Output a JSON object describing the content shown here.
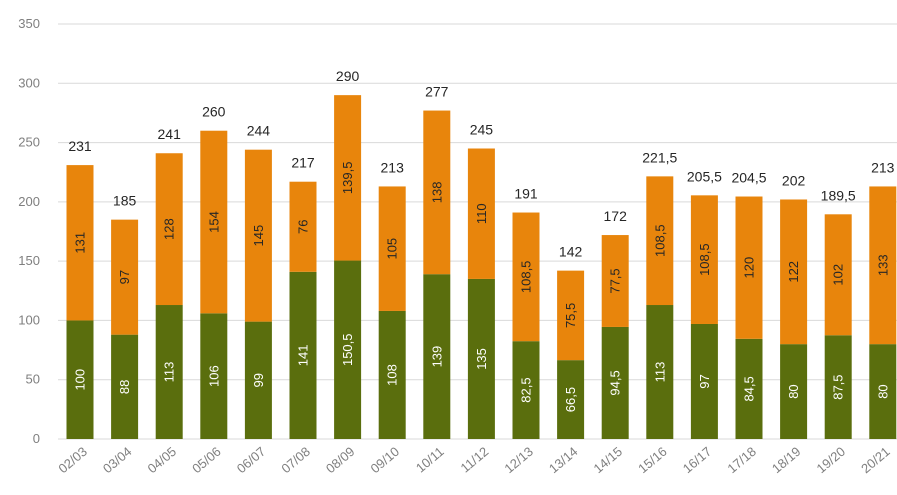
{
  "chart_data": {
    "type": "bar",
    "stacked": true,
    "categories": [
      "02/03",
      "03/04",
      "04/05",
      "05/06",
      "06/07",
      "07/08",
      "08/09",
      "09/10",
      "10/11",
      "11/12",
      "12/13",
      "13/14",
      "14/15",
      "15/16",
      "16/17",
      "17/18",
      "18/19",
      "19/20",
      "20/21"
    ],
    "series": [
      {
        "color": "#5a6e0d",
        "values": [
          100,
          88,
          113,
          106,
          99,
          141,
          150.5,
          108,
          139,
          135,
          82.5,
          66.5,
          94.5,
          113,
          97,
          84.5,
          80,
          87.5,
          80
        ],
        "labels": [
          "100",
          "88",
          "113",
          "106",
          "99",
          "141",
          "150,5",
          "108",
          "139",
          "135",
          "82,5",
          "66,5",
          "94,5",
          "113",
          "97",
          "84,5",
          "80",
          "87,5",
          "80"
        ]
      },
      {
        "color": "#e8850c",
        "values": [
          131,
          97,
          128,
          154,
          145,
          76,
          139.5,
          105,
          138,
          110,
          108.5,
          75.5,
          77.5,
          108.5,
          108.5,
          120,
          122,
          102,
          133
        ],
        "labels": [
          "131",
          "97",
          "128",
          "154",
          "145",
          "76",
          "139,5",
          "105",
          "138",
          "110",
          "108,5",
          "75,5",
          "77,5",
          "108,5",
          "108,5",
          "120",
          "122",
          "102",
          "133"
        ]
      }
    ],
    "totals": [
      231,
      185,
      241,
      260,
      244,
      217,
      290,
      213,
      277,
      245,
      191,
      142,
      172,
      221.5,
      205.5,
      204.5,
      202,
      189.5,
      213
    ],
    "total_labels": [
      "231",
      "185",
      "241",
      "260",
      "244",
      "217",
      "290",
      "213",
      "277",
      "245",
      "191",
      "142",
      "172",
      "221,5",
      "205,5",
      "204,5",
      "202",
      "189,5",
      "213"
    ],
    "ylim": [
      0,
      350
    ],
    "yticks": [
      0,
      50,
      100,
      150,
      200,
      250,
      300,
      350
    ],
    "ytick_labels": [
      "0",
      "50",
      "100",
      "150",
      "200",
      "250",
      "300",
      "350"
    ],
    "grid": true,
    "gridline_color": "#d9d9d9",
    "title": "",
    "xlabel": "",
    "ylabel": ""
  }
}
